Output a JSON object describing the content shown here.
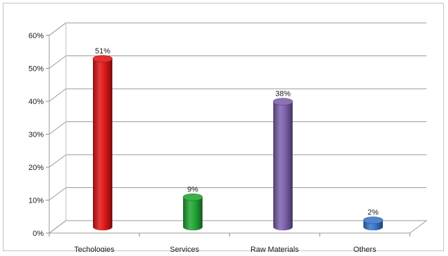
{
  "chart_data": {
    "type": "bar",
    "categories": [
      "Techologies",
      "Services",
      "Raw Materials",
      "Others"
    ],
    "values": [
      51,
      9,
      38,
      2
    ],
    "data_labels": [
      "51%",
      "9%",
      "38%",
      "2%"
    ],
    "ylim": [
      0,
      60
    ],
    "y_ticks": [
      0,
      10,
      20,
      30,
      40,
      50,
      60
    ],
    "y_tick_labels": [
      "0%",
      "10%",
      "20%",
      "30%",
      "40%",
      "50%",
      "60%"
    ],
    "title": "",
    "xlabel": "",
    "ylabel": "",
    "grid": true,
    "legend": "none",
    "style": "3d-cylinder",
    "colors": [
      "#e01818",
      "#24a636",
      "#7e62ad",
      "#3a78c9"
    ]
  }
}
